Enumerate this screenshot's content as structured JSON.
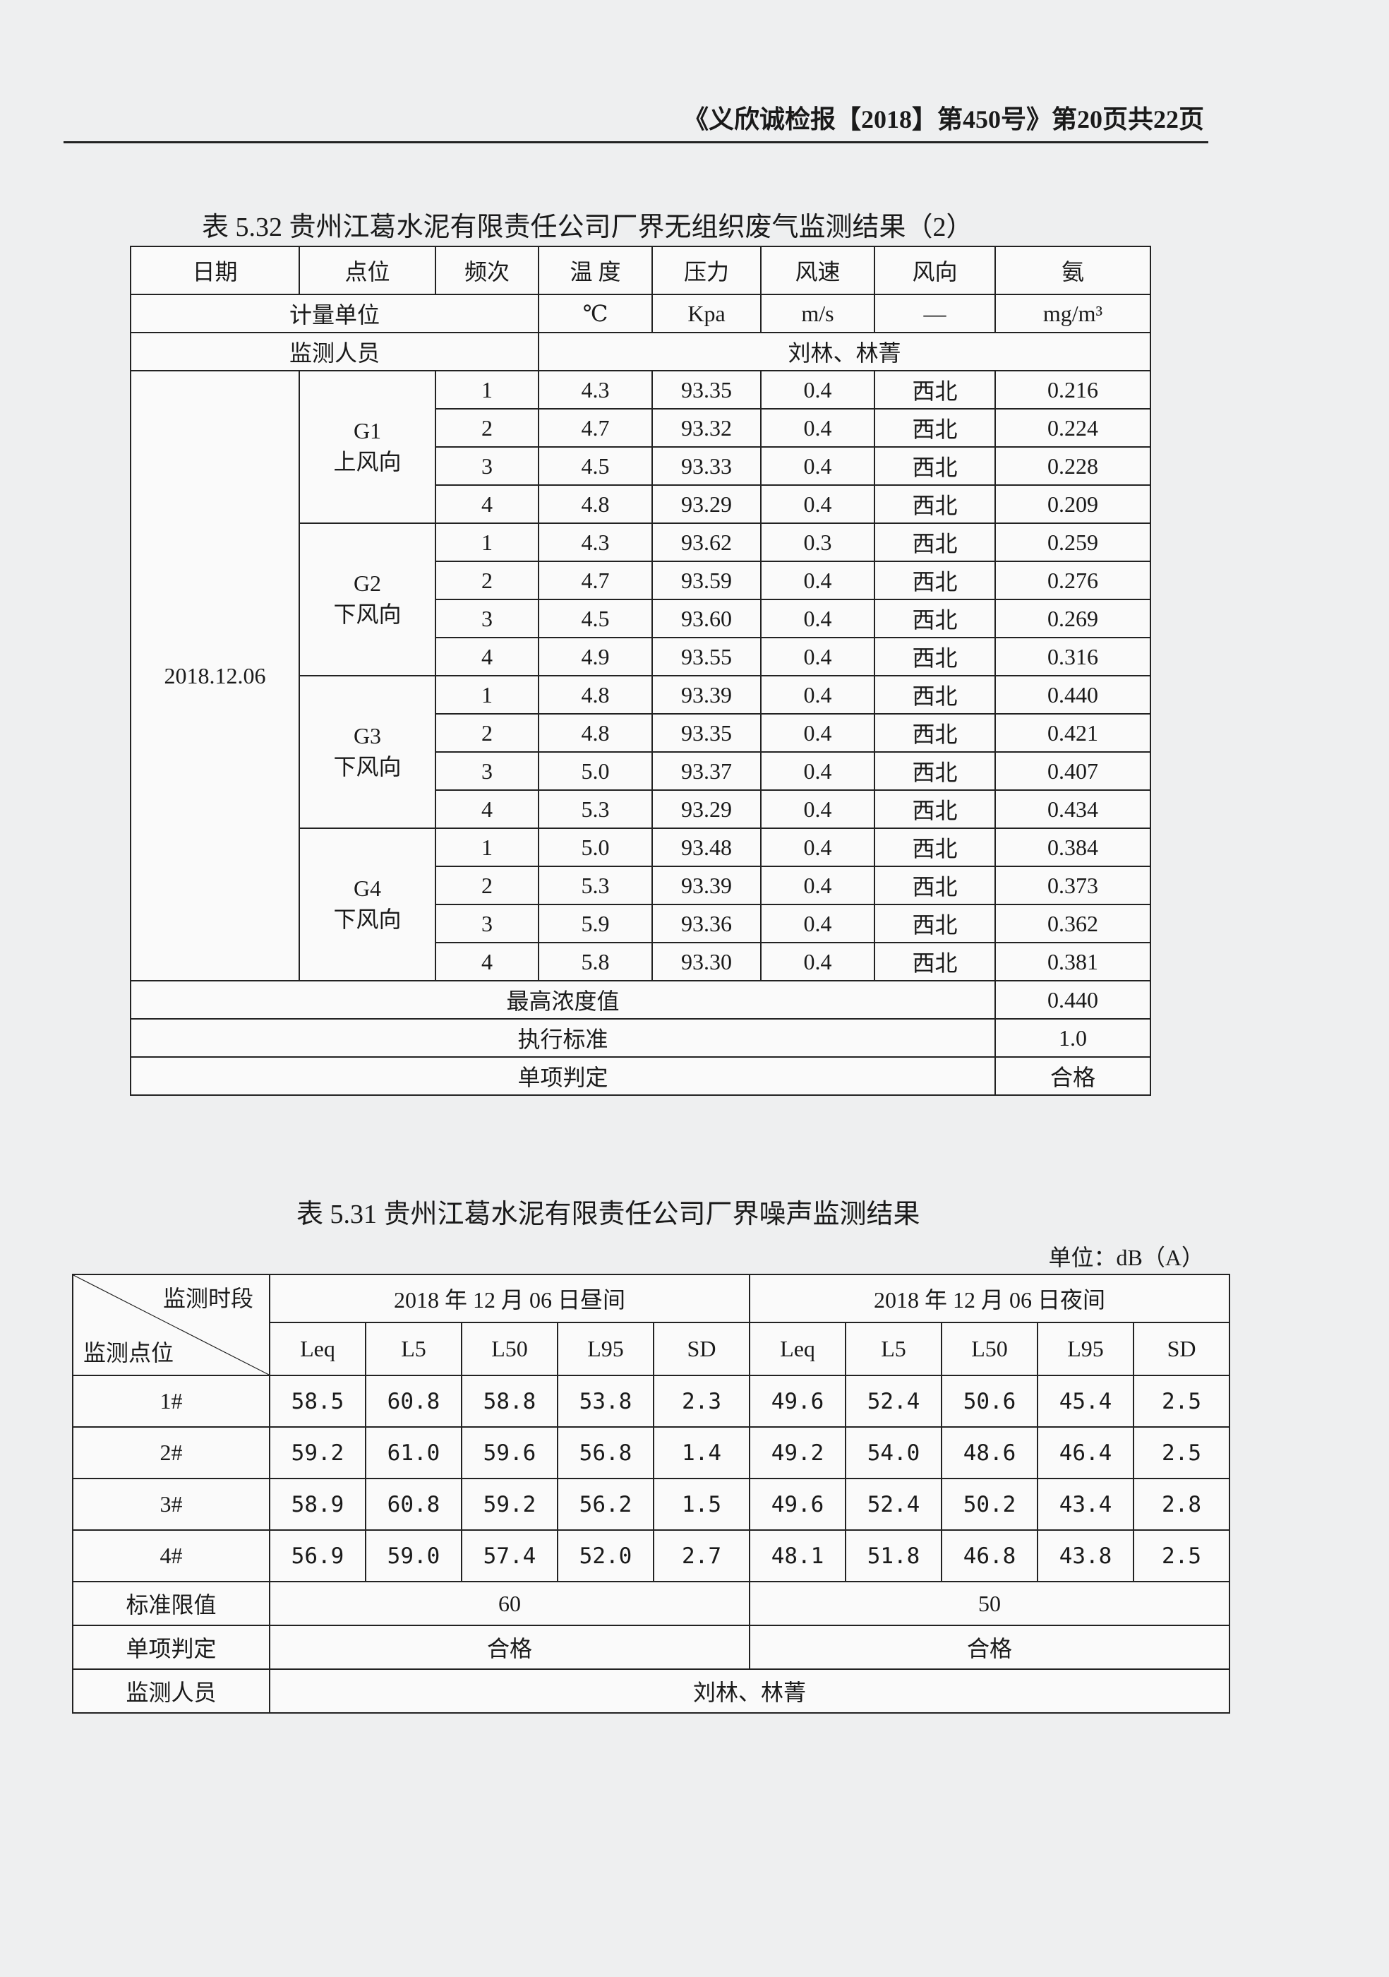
{
  "header": {
    "report_ref": "《义欣诚检报【2018】第450号》第20页共22页"
  },
  "table1": {
    "title": "表 5.32   贵州江葛水泥有限责任公司厂界无组织废气监测结果（2）",
    "columns": [
      "日期",
      "点位",
      "频次",
      "温 度",
      "压力",
      "风速",
      "风向",
      "氨"
    ],
    "units_label": "计量单位",
    "units": [
      "℃",
      "Kpa",
      "m/s",
      "—",
      "mg/m³"
    ],
    "personnel_label": "监测人员",
    "personnel": "刘林、林菁",
    "date": "2018.12.06",
    "groups": [
      {
        "point": "G1",
        "direction": "上风向",
        "rows": [
          [
            "1",
            "4.3",
            "93.35",
            "0.4",
            "西北",
            "0.216"
          ],
          [
            "2",
            "4.7",
            "93.32",
            "0.4",
            "西北",
            "0.224"
          ],
          [
            "3",
            "4.5",
            "93.33",
            "0.4",
            "西北",
            "0.228"
          ],
          [
            "4",
            "4.8",
            "93.29",
            "0.4",
            "西北",
            "0.209"
          ]
        ]
      },
      {
        "point": "G2",
        "direction": "下风向",
        "rows": [
          [
            "1",
            "4.3",
            "93.62",
            "0.3",
            "西北",
            "0.259"
          ],
          [
            "2",
            "4.7",
            "93.59",
            "0.4",
            "西北",
            "0.276"
          ],
          [
            "3",
            "4.5",
            "93.60",
            "0.4",
            "西北",
            "0.269"
          ],
          [
            "4",
            "4.9",
            "93.55",
            "0.4",
            "西北",
            "0.316"
          ]
        ]
      },
      {
        "point": "G3",
        "direction": "下风向",
        "rows": [
          [
            "1",
            "4.8",
            "93.39",
            "0.4",
            "西北",
            "0.440"
          ],
          [
            "2",
            "4.8",
            "93.35",
            "0.4",
            "西北",
            "0.421"
          ],
          [
            "3",
            "5.0",
            "93.37",
            "0.4",
            "西北",
            "0.407"
          ],
          [
            "4",
            "5.3",
            "93.29",
            "0.4",
            "西北",
            "0.434"
          ]
        ]
      },
      {
        "point": "G4",
        "direction": "下风向",
        "rows": [
          [
            "1",
            "5.0",
            "93.48",
            "0.4",
            "西北",
            "0.384"
          ],
          [
            "2",
            "5.3",
            "93.39",
            "0.4",
            "西北",
            "0.373"
          ],
          [
            "3",
            "5.9",
            "93.36",
            "0.4",
            "西北",
            "0.362"
          ],
          [
            "4",
            "5.8",
            "93.30",
            "0.4",
            "西北",
            "0.381"
          ]
        ]
      }
    ],
    "summary": [
      {
        "label": "最高浓度值",
        "value": "0.440"
      },
      {
        "label": "执行标准",
        "value": "1.0"
      },
      {
        "label": "单项判定",
        "value": "合格"
      }
    ]
  },
  "table2": {
    "title": "表 5.31   贵州江葛水泥有限责任公司厂界噪声监测结果",
    "unit": "单位：dB（A）",
    "corner_top": "监测时段",
    "corner_bottom": "监测点位",
    "periods": [
      "2018 年 12 月 06 日昼间",
      "2018 年 12 月 06 日夜间"
    ],
    "metrics": [
      "Leq",
      "L5",
      "L50",
      "L95",
      "SD",
      "Leq",
      "L5",
      "L50",
      "L95",
      "SD"
    ],
    "rows": [
      {
        "point": "1#",
        "values": [
          "58.5",
          "60.8",
          "58.8",
          "53.8",
          "2.3",
          "49.6",
          "52.4",
          "50.6",
          "45.4",
          "2.5"
        ]
      },
      {
        "point": "2#",
        "values": [
          "59.2",
          "61.0",
          "59.6",
          "56.8",
          "1.4",
          "49.2",
          "54.0",
          "48.6",
          "46.4",
          "2.5"
        ]
      },
      {
        "point": "3#",
        "values": [
          "58.9",
          "60.8",
          "59.2",
          "56.2",
          "1.5",
          "49.6",
          "52.4",
          "50.2",
          "43.4",
          "2.8"
        ]
      },
      {
        "point": "4#",
        "values": [
          "56.9",
          "59.0",
          "57.4",
          "52.0",
          "2.7",
          "48.1",
          "51.8",
          "46.8",
          "43.8",
          "2.5"
        ]
      }
    ],
    "limit_label": "标准限值",
    "limits": [
      "60",
      "50"
    ],
    "judgement_label": "单项判定",
    "judgements": [
      "合格",
      "合格"
    ],
    "personnel_label": "监测人员",
    "personnel": "刘林、林菁"
  }
}
